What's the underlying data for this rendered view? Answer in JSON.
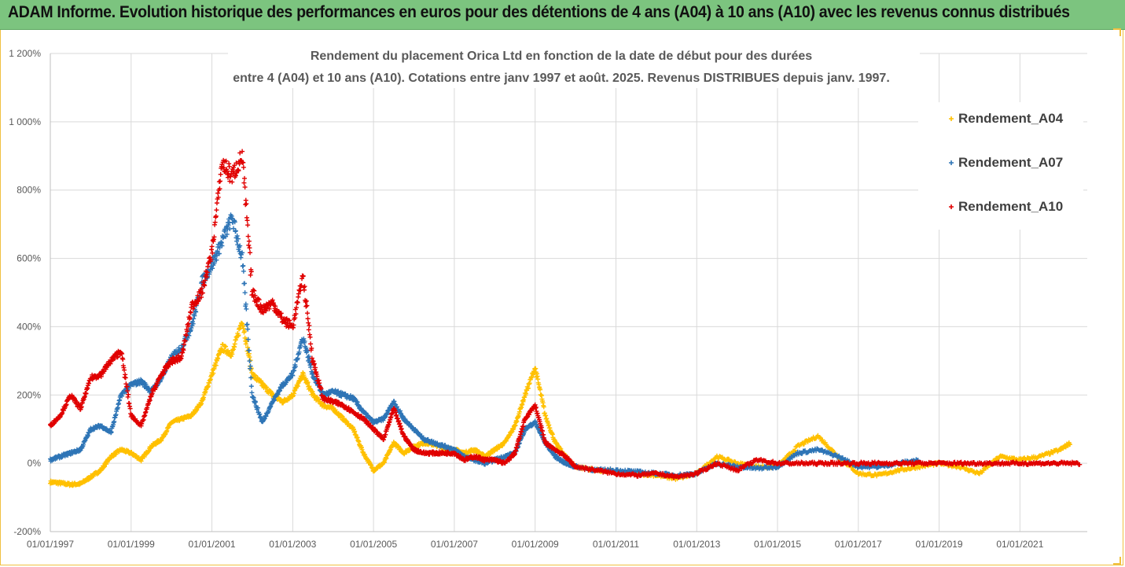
{
  "header": {
    "title": "ADAM Informe. Evolution historique des performances en euros pour des détentions de 4 ans (A04) à 10 ans (A10) avec les revenus connus distribués"
  },
  "colors": {
    "header_bg": "#7cc47f",
    "A04": "#ffc000",
    "A07": "#2e75b6",
    "A10": "#e00000"
  },
  "chart_data": {
    "type": "scatter",
    "title_line1": "Rendement du placement Orica Ltd en fonction de la date de début pour des durées",
    "title_line2": "entre 4 (A04) et 10 ans (A10). Cotations entre janv 1997 et août. 2025. Revenus DISTRIBUES depuis janv. 1997.",
    "y_unit": "%",
    "ylim": [
      -200,
      1200
    ],
    "y_ticks": [
      -200,
      0,
      200,
      400,
      600,
      800,
      1000,
      1200
    ],
    "y_tick_labels": [
      "-200%",
      "0%",
      "200%",
      "400%",
      "600%",
      "800%",
      "1 000%",
      "1 200%"
    ],
    "x_range": [
      "1997-01-01",
      "2022-09-01"
    ],
    "x_tick_labels": [
      "01/01/1997",
      "01/01/1999",
      "01/01/2001",
      "01/01/2003",
      "01/01/2005",
      "01/01/2007",
      "01/01/2009",
      "01/01/2011",
      "01/01/2013",
      "01/01/2015",
      "01/01/2017",
      "01/01/2019",
      "01/01/2021"
    ],
    "grid": true,
    "legend_position": "right",
    "marker": "+",
    "series": [
      {
        "name": "Rendement_A04",
        "color": "#ffc000",
        "points": [
          [
            "1997-01",
            -55
          ],
          [
            "1997-04",
            -58
          ],
          [
            "1997-07",
            -62
          ],
          [
            "1997-10",
            -60
          ],
          [
            "1998-01",
            -40
          ],
          [
            "1998-04",
            -20
          ],
          [
            "1998-07",
            20
          ],
          [
            "1998-10",
            40
          ],
          [
            "1999-01",
            30
          ],
          [
            "1999-04",
            10
          ],
          [
            "1999-07",
            50
          ],
          [
            "1999-10",
            70
          ],
          [
            "2000-01",
            120
          ],
          [
            "2000-04",
            130
          ],
          [
            "2000-07",
            140
          ],
          [
            "2000-10",
            180
          ],
          [
            "2001-01",
            260
          ],
          [
            "2001-04",
            340
          ],
          [
            "2001-07",
            320
          ],
          [
            "2001-10",
            420
          ],
          [
            "2002-01",
            260
          ],
          [
            "2002-04",
            230
          ],
          [
            "2002-07",
            200
          ],
          [
            "2002-10",
            180
          ],
          [
            "2003-01",
            200
          ],
          [
            "2003-04",
            260
          ],
          [
            "2003-07",
            200
          ],
          [
            "2003-10",
            170
          ],
          [
            "2004-01",
            160
          ],
          [
            "2004-04",
            130
          ],
          [
            "2004-07",
            100
          ],
          [
            "2004-10",
            30
          ],
          [
            "2005-01",
            -20
          ],
          [
            "2005-04",
            0
          ],
          [
            "2005-07",
            60
          ],
          [
            "2005-10",
            30
          ],
          [
            "2006-01",
            50
          ],
          [
            "2006-04",
            60
          ],
          [
            "2006-07",
            55
          ],
          [
            "2006-10",
            45
          ],
          [
            "2007-01",
            40
          ],
          [
            "2007-04",
            30
          ],
          [
            "2007-07",
            40
          ],
          [
            "2007-10",
            20
          ],
          [
            "2008-01",
            40
          ],
          [
            "2008-04",
            60
          ],
          [
            "2008-07",
            110
          ],
          [
            "2008-10",
            200
          ],
          [
            "2009-01",
            280
          ],
          [
            "2009-04",
            140
          ],
          [
            "2009-07",
            60
          ],
          [
            "2009-10",
            20
          ],
          [
            "2010-01",
            -10
          ],
          [
            "2010-07",
            -20
          ],
          [
            "2011-01",
            -25
          ],
          [
            "2011-07",
            -30
          ],
          [
            "2012-01",
            -35
          ],
          [
            "2012-07",
            -45
          ],
          [
            "2013-01",
            -30
          ],
          [
            "2013-07",
            20
          ],
          [
            "2014-01",
            0
          ],
          [
            "2014-07",
            -10
          ],
          [
            "2015-01",
            -10
          ],
          [
            "2015-07",
            50
          ],
          [
            "2016-01",
            80
          ],
          [
            "2016-07",
            20
          ],
          [
            "2017-01",
            -30
          ],
          [
            "2017-07",
            -35
          ],
          [
            "2018-01",
            -20
          ],
          [
            "2018-07",
            -10
          ],
          [
            "2019-01",
            0
          ],
          [
            "2019-07",
            -10
          ],
          [
            "2020-01",
            -30
          ],
          [
            "2020-07",
            20
          ],
          [
            "2021-01",
            10
          ],
          [
            "2021-07",
            20
          ],
          [
            "2022-01",
            40
          ],
          [
            "2022-04",
            60
          ]
        ]
      },
      {
        "name": "Rendement_A07",
        "color": "#2e75b6",
        "points": [
          [
            "1997-01",
            10
          ],
          [
            "1997-04",
            20
          ],
          [
            "1997-07",
            30
          ],
          [
            "1997-10",
            40
          ],
          [
            "1998-01",
            100
          ],
          [
            "1998-04",
            110
          ],
          [
            "1998-07",
            90
          ],
          [
            "1998-10",
            200
          ],
          [
            "1999-01",
            230
          ],
          [
            "1999-04",
            240
          ],
          [
            "1999-07",
            210
          ],
          [
            "1999-10",
            250
          ],
          [
            "2000-01",
            310
          ],
          [
            "2000-04",
            340
          ],
          [
            "2000-07",
            400
          ],
          [
            "2000-10",
            530
          ],
          [
            "2001-01",
            580
          ],
          [
            "2001-04",
            650
          ],
          [
            "2001-07",
            720
          ],
          [
            "2001-10",
            600
          ],
          [
            "2002-01",
            200
          ],
          [
            "2002-04",
            120
          ],
          [
            "2002-07",
            180
          ],
          [
            "2002-10",
            230
          ],
          [
            "2003-01",
            260
          ],
          [
            "2003-04",
            370
          ],
          [
            "2003-07",
            260
          ],
          [
            "2003-10",
            200
          ],
          [
            "2004-01",
            210
          ],
          [
            "2004-04",
            200
          ],
          [
            "2004-07",
            190
          ],
          [
            "2004-10",
            150
          ],
          [
            "2005-01",
            120
          ],
          [
            "2005-04",
            130
          ],
          [
            "2005-07",
            180
          ],
          [
            "2005-10",
            130
          ],
          [
            "2006-01",
            100
          ],
          [
            "2006-04",
            70
          ],
          [
            "2006-07",
            60
          ],
          [
            "2006-10",
            50
          ],
          [
            "2007-01",
            40
          ],
          [
            "2007-04",
            20
          ],
          [
            "2007-07",
            10
          ],
          [
            "2007-10",
            0
          ],
          [
            "2008-01",
            10
          ],
          [
            "2008-04",
            20
          ],
          [
            "2008-07",
            30
          ],
          [
            "2008-10",
            100
          ],
          [
            "2009-01",
            120
          ],
          [
            "2009-04",
            60
          ],
          [
            "2009-07",
            20
          ],
          [
            "2009-10",
            0
          ],
          [
            "2010-01",
            -10
          ],
          [
            "2010-07",
            -20
          ],
          [
            "2011-01",
            -20
          ],
          [
            "2011-07",
            -25
          ],
          [
            "2012-01",
            -30
          ],
          [
            "2012-07",
            -35
          ],
          [
            "2013-01",
            -30
          ],
          [
            "2013-07",
            0
          ],
          [
            "2014-01",
            -10
          ],
          [
            "2014-07",
            -15
          ],
          [
            "2015-01",
            -10
          ],
          [
            "2015-07",
            30
          ],
          [
            "2016-01",
            40
          ],
          [
            "2016-07",
            20
          ],
          [
            "2017-01",
            -10
          ],
          [
            "2017-07",
            -10
          ],
          [
            "2018-01",
            0
          ],
          [
            "2018-07",
            10
          ]
        ]
      },
      {
        "name": "Rendement_A10",
        "color": "#e00000",
        "points": [
          [
            "1997-01",
            110
          ],
          [
            "1997-04",
            140
          ],
          [
            "1997-07",
            200
          ],
          [
            "1997-10",
            160
          ],
          [
            "1998-01",
            250
          ],
          [
            "1998-04",
            260
          ],
          [
            "1998-07",
            300
          ],
          [
            "1998-10",
            330
          ],
          [
            "1999-01",
            140
          ],
          [
            "1999-04",
            110
          ],
          [
            "1999-07",
            200
          ],
          [
            "1999-10",
            260
          ],
          [
            "2000-01",
            300
          ],
          [
            "2000-04",
            310
          ],
          [
            "2000-07",
            460
          ],
          [
            "2000-10",
            500
          ],
          [
            "2001-01",
            620
          ],
          [
            "2001-04",
            880
          ],
          [
            "2001-07",
            840
          ],
          [
            "2001-10",
            900
          ],
          [
            "2002-01",
            500
          ],
          [
            "2002-04",
            450
          ],
          [
            "2002-07",
            470
          ],
          [
            "2002-10",
            420
          ],
          [
            "2003-01",
            400
          ],
          [
            "2003-04",
            550
          ],
          [
            "2003-07",
            300
          ],
          [
            "2003-10",
            190
          ],
          [
            "2004-01",
            180
          ],
          [
            "2004-04",
            170
          ],
          [
            "2004-07",
            150
          ],
          [
            "2004-10",
            130
          ],
          [
            "2005-01",
            100
          ],
          [
            "2005-04",
            70
          ],
          [
            "2005-07",
            160
          ],
          [
            "2005-10",
            80
          ],
          [
            "2006-01",
            40
          ],
          [
            "2006-04",
            30
          ],
          [
            "2006-07",
            30
          ],
          [
            "2006-10",
            30
          ],
          [
            "2007-01",
            30
          ],
          [
            "2007-04",
            10
          ],
          [
            "2007-07",
            20
          ],
          [
            "2007-10",
            10
          ],
          [
            "2008-01",
            10
          ],
          [
            "2008-04",
            0
          ],
          [
            "2008-07",
            30
          ],
          [
            "2008-10",
            130
          ],
          [
            "2009-01",
            170
          ],
          [
            "2009-04",
            60
          ],
          [
            "2009-07",
            40
          ],
          [
            "2009-10",
            20
          ],
          [
            "2010-01",
            -10
          ],
          [
            "2010-07",
            -20
          ],
          [
            "2011-01",
            -30
          ],
          [
            "2011-07",
            -35
          ],
          [
            "2012-01",
            -30
          ],
          [
            "2012-07",
            -40
          ],
          [
            "2013-01",
            -30
          ],
          [
            "2013-07",
            0
          ],
          [
            "2014-01",
            -20
          ],
          [
            "2014-07",
            10
          ],
          [
            "2015-01",
            0
          ],
          [
            "2015-07",
            0
          ],
          [
            "2016-01",
            0
          ],
          [
            "2016-07",
            0
          ],
          [
            "2017-01",
            0
          ],
          [
            "2017-07",
            0
          ],
          [
            "2018-01",
            0
          ],
          [
            "2018-07",
            0
          ],
          [
            "2019-01",
            0
          ],
          [
            "2019-07",
            0
          ],
          [
            "2020-01",
            0
          ],
          [
            "2020-07",
            0
          ],
          [
            "2021-01",
            0
          ],
          [
            "2021-07",
            0
          ],
          [
            "2022-01",
            0
          ],
          [
            "2022-07",
            0
          ]
        ]
      }
    ]
  }
}
